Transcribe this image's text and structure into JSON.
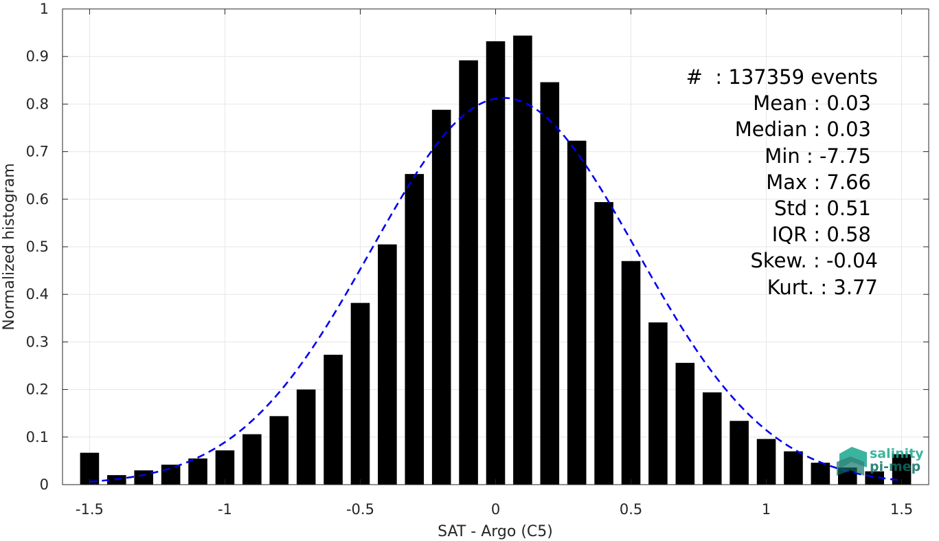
{
  "chart_data": {
    "type": "bar",
    "xlabel": "SAT - Argo (C5)",
    "ylabel": "Normalized histogram",
    "xlim": [
      -1.6,
      1.6
    ],
    "ylim": [
      0,
      1
    ],
    "grid": true,
    "xticks": [
      -1.5,
      -1,
      -0.5,
      0,
      0.5,
      1,
      1.5
    ],
    "xtick_labels": [
      "-1.5",
      "-1",
      "-0.5",
      "0",
      "0.5",
      "1",
      "1.5"
    ],
    "yticks": [
      0,
      0.1,
      0.2,
      0.3,
      0.4,
      0.5,
      0.6,
      0.7,
      0.8,
      0.9,
      1
    ],
    "ytick_labels": [
      "0",
      "0.1",
      "0.2",
      "0.3",
      "0.4",
      "0.5",
      "0.6",
      "0.7",
      "0.8",
      "0.9",
      "1"
    ],
    "bins": {
      "centers": [
        -1.5,
        -1.4,
        -1.3,
        -1.2,
        -1.1,
        -1.0,
        -0.9,
        -0.8,
        -0.7,
        -0.6,
        -0.5,
        -0.4,
        -0.3,
        -0.2,
        -0.1,
        0.0,
        0.1,
        0.2,
        0.3,
        0.4,
        0.5,
        0.6,
        0.7,
        0.8,
        0.9,
        1.0,
        1.1,
        1.2,
        1.3,
        1.4,
        1.5
      ],
      "values": [
        0.067,
        0.02,
        0.03,
        0.042,
        0.055,
        0.072,
        0.106,
        0.144,
        0.2,
        0.273,
        0.382,
        0.505,
        0.653,
        0.788,
        0.892,
        0.932,
        0.944,
        0.846,
        0.723,
        0.594,
        0.47,
        0.341,
        0.256,
        0.194,
        0.134,
        0.096,
        0.07,
        0.046,
        0.036,
        0.028,
        0.064
      ],
      "color": "#000000"
    },
    "fit": {
      "style": "dashed",
      "color": "#0000ee",
      "mean": 0.03,
      "std": 0.49,
      "peak": 0.813,
      "x_range": [
        -1.5,
        1.5
      ]
    },
    "stats": {
      "count": "#  : 137359 events",
      "mean": "Mean : 0.03",
      "median": "Median : 0.03",
      "min": "Min : -7.75",
      "max": "Max : 7.66",
      "std": "Std : 0.51",
      "iqr": "IQR : 0.58",
      "skew": "Skew. : -0.04",
      "kurt": "Kurt. : 3.77"
    }
  },
  "logo": {
    "line1": "salinity",
    "line2": "pi-mep",
    "color_primary": "#1aa88f",
    "color_secondary": "#0d6f63"
  }
}
